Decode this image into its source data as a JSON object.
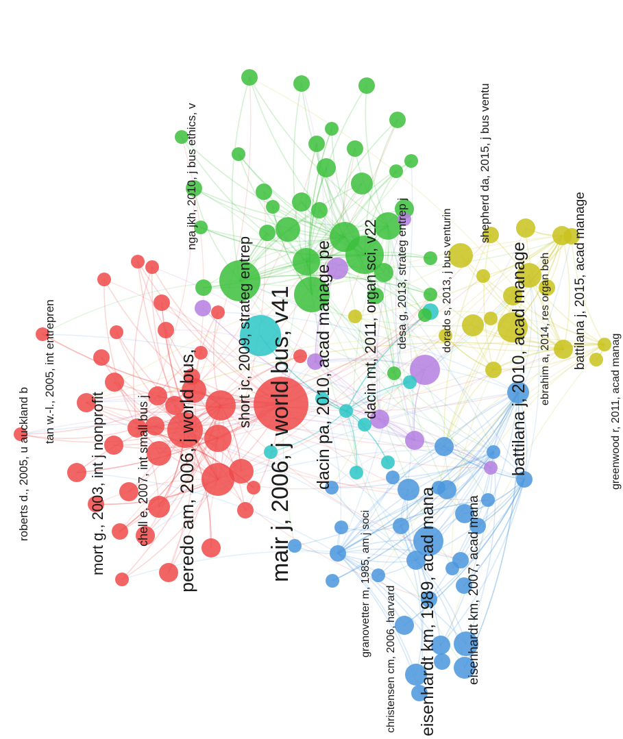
{
  "clusters": [
    {
      "id": "red",
      "color": "#ef4a4a"
    },
    {
      "id": "green",
      "color": "#3cbf3c"
    },
    {
      "id": "blue",
      "color": "#4a97dd"
    },
    {
      "id": "yellow",
      "color": "#c9c21c"
    },
    {
      "id": "purple",
      "color": "#b47fe0"
    },
    {
      "id": "cyan",
      "color": "#2cc6c6"
    }
  ],
  "labels": [
    {
      "text": "mair j, 2006, j world bus, v41",
      "cluster": "red"
    },
    {
      "text": "peredo am, 2006, j world bus,",
      "cluster": "red"
    },
    {
      "text": "mort g., 2003, int j nonprofit",
      "cluster": "red"
    },
    {
      "text": "chell e, 2007, int small bus j",
      "cluster": "red"
    },
    {
      "text": "roberts d., 2005, u auckland b",
      "cluster": "red"
    },
    {
      "text": "tan w.-l., 2005, int entrepren",
      "cluster": "red"
    },
    {
      "text": "short jc, 2009, strateg entrep",
      "cluster": "green"
    },
    {
      "text": "nga jkh, 2010, j bus ethics, v",
      "cluster": "green"
    },
    {
      "text": "dacin pa, 2010, acad manage pe",
      "cluster": "green"
    },
    {
      "text": "dacin mt, 2011, organ sci, v22",
      "cluster": "green"
    },
    {
      "text": "desa g, 2013, strateg entrep j",
      "cluster": "green"
    },
    {
      "text": "dorado s, 2013, j bus venturin",
      "cluster": "green"
    },
    {
      "text": "eisenhardt km, 1989, acad mana",
      "cluster": "blue"
    },
    {
      "text": "eisenhardt km, 2007, acad mana",
      "cluster": "blue"
    },
    {
      "text": "granovetter m, 1985, am j soci",
      "cluster": "blue"
    },
    {
      "text": "christensen cm, 2006, harvard",
      "cluster": "blue"
    },
    {
      "text": "battilana j, 2010, acad manage",
      "cluster": "yellow"
    },
    {
      "text": "battilana j, 2015, acad manage",
      "cluster": "yellow"
    },
    {
      "text": "shepherd da, 2015, j bus ventu",
      "cluster": "yellow"
    },
    {
      "text": "ebrahim a, 2014, res organ beh",
      "cluster": "yellow"
    },
    {
      "text": "greenwood r, 2011, acad manag",
      "cluster": "yellow"
    }
  ]
}
